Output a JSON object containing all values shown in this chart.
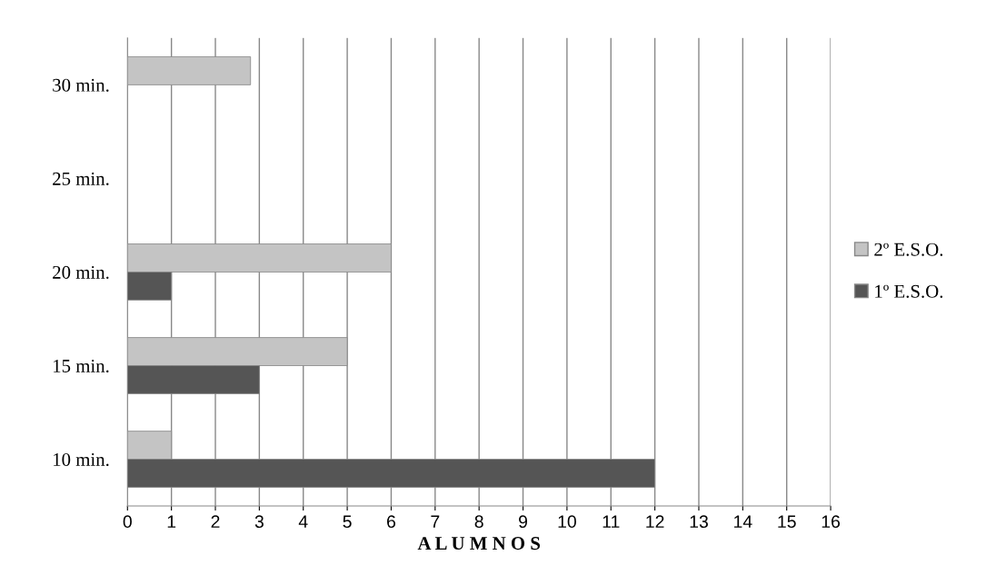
{
  "chart_data": {
    "type": "bar",
    "orientation": "horizontal",
    "xlabel": "A L U M N O S",
    "categories": [
      "30 min.",
      "25 min.",
      "20 min.",
      "15 min.",
      "10 min."
    ],
    "series": [
      {
        "name": "2º E.S.O.",
        "color": "#c4c4c4",
        "values": [
          2.8,
          null,
          6,
          5,
          1
        ]
      },
      {
        "name": "1º E.S.O.",
        "color": "#555555",
        "values": [
          null,
          null,
          1,
          3,
          12
        ]
      }
    ],
    "xlim": [
      0,
      16
    ],
    "xticks": [
      0,
      1,
      2,
      3,
      4,
      5,
      6,
      7,
      8,
      9,
      10,
      11,
      12,
      13,
      14,
      15,
      16
    ],
    "grid": "x",
    "legend": "right"
  }
}
